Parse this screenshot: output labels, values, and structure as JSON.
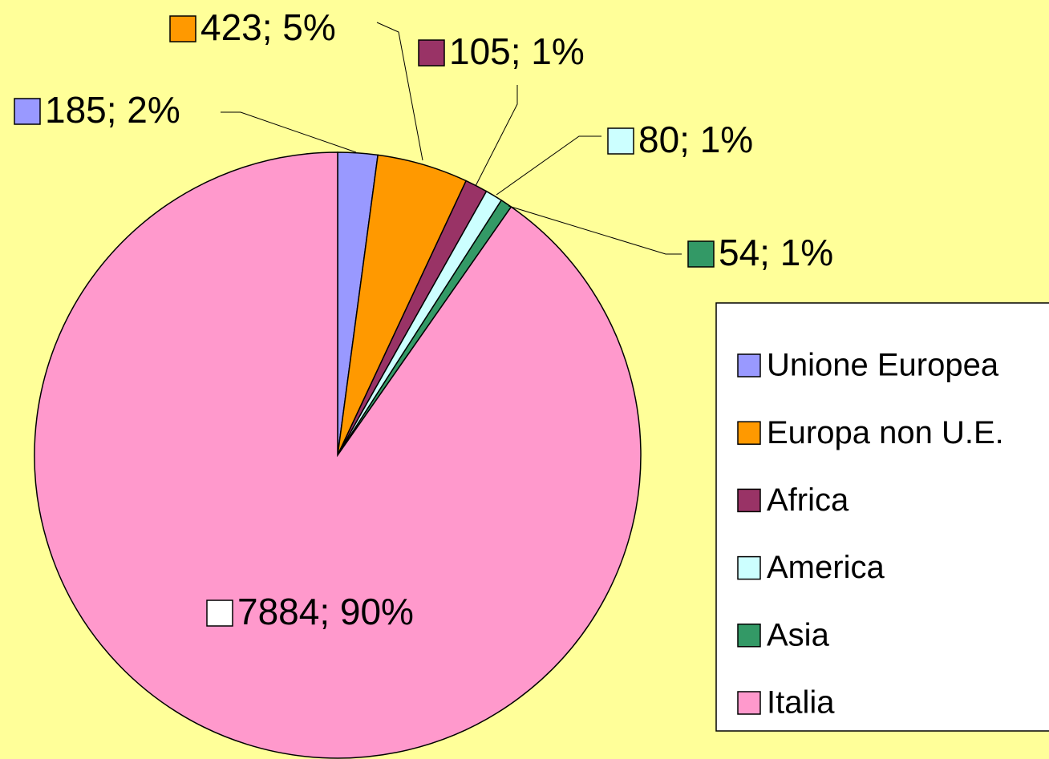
{
  "chart_data": {
    "type": "pie",
    "categories": [
      "Unione Europea",
      "Europa non U.E.",
      "Africa",
      "America",
      "Asia",
      "Italia"
    ],
    "values": [
      185,
      423,
      105,
      80,
      54,
      7884
    ],
    "value_labels": [
      "185; 2%",
      "423; 5%",
      "105; 1%",
      "80; 1%",
      "54; 1%",
      "7884; 90%"
    ],
    "colors": [
      "#9999ff",
      "#ff9900",
      "#993366",
      "#ccffff",
      "#339966",
      "#ff99cc"
    ],
    "legend": "right"
  }
}
